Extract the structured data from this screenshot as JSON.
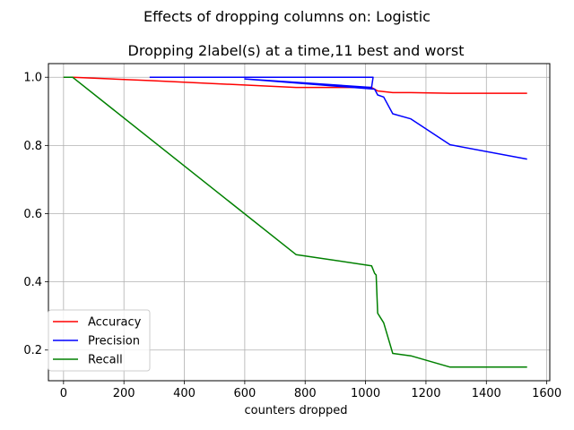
{
  "chart_data": {
    "type": "line",
    "suptitle": "Effects of dropping columns on: Logistic",
    "title": "Dropping 2label(s) at a time,11 best and worst",
    "xlabel": "counters dropped",
    "ylabel": "",
    "xlim": [
      -50,
      1610
    ],
    "ylim": [
      0.11,
      1.04
    ],
    "xticks": [
      0,
      200,
      400,
      600,
      800,
      1000,
      1200,
      1400,
      1600
    ],
    "yticks": [
      0.2,
      0.4,
      0.6,
      0.8,
      1.0
    ],
    "xtick_labels": [
      "0",
      "200",
      "400",
      "600",
      "800",
      "1000",
      "1200",
      "1400",
      "1600"
    ],
    "ytick_labels": [
      "0.2",
      "0.4",
      "0.6",
      "0.8",
      "1.0"
    ],
    "grid": true,
    "legend_position": "lower left",
    "series": [
      {
        "name": "Accuracy",
        "color": "#ff0000",
        "points": [
          [
            0,
            1.0
          ],
          [
            30,
            1.0
          ],
          [
            290,
            0.99
          ],
          [
            770,
            0.97
          ],
          [
            1020,
            0.97
          ],
          [
            1040,
            0.96
          ],
          [
            1060,
            0.958
          ],
          [
            1090,
            0.955
          ],
          [
            1150,
            0.955
          ],
          [
            1280,
            0.953
          ],
          [
            1535,
            0.953
          ]
        ]
      },
      {
        "name": "Precision",
        "color": "#0000ff",
        "points": [
          [
            285,
            1.0
          ],
          [
            1025,
            1.0
          ],
          [
            1020,
            0.97
          ],
          [
            770,
            0.985
          ],
          [
            600,
            0.995
          ],
          [
            1030,
            0.965
          ],
          [
            1040,
            0.948
          ],
          [
            1060,
            0.942
          ],
          [
            1090,
            0.893
          ],
          [
            1150,
            0.878
          ],
          [
            1280,
            0.802
          ],
          [
            1535,
            0.76
          ]
        ]
      },
      {
        "name": "Recall",
        "color": "#008000",
        "points": [
          [
            0,
            1.0
          ],
          [
            30,
            1.0
          ],
          [
            770,
            0.48
          ],
          [
            1020,
            0.447
          ],
          [
            1030,
            0.425
          ],
          [
            1035,
            0.42
          ],
          [
            1040,
            0.308
          ],
          [
            1060,
            0.28
          ],
          [
            1090,
            0.19
          ],
          [
            1150,
            0.183
          ],
          [
            1280,
            0.15
          ],
          [
            1535,
            0.15
          ]
        ]
      }
    ]
  }
}
